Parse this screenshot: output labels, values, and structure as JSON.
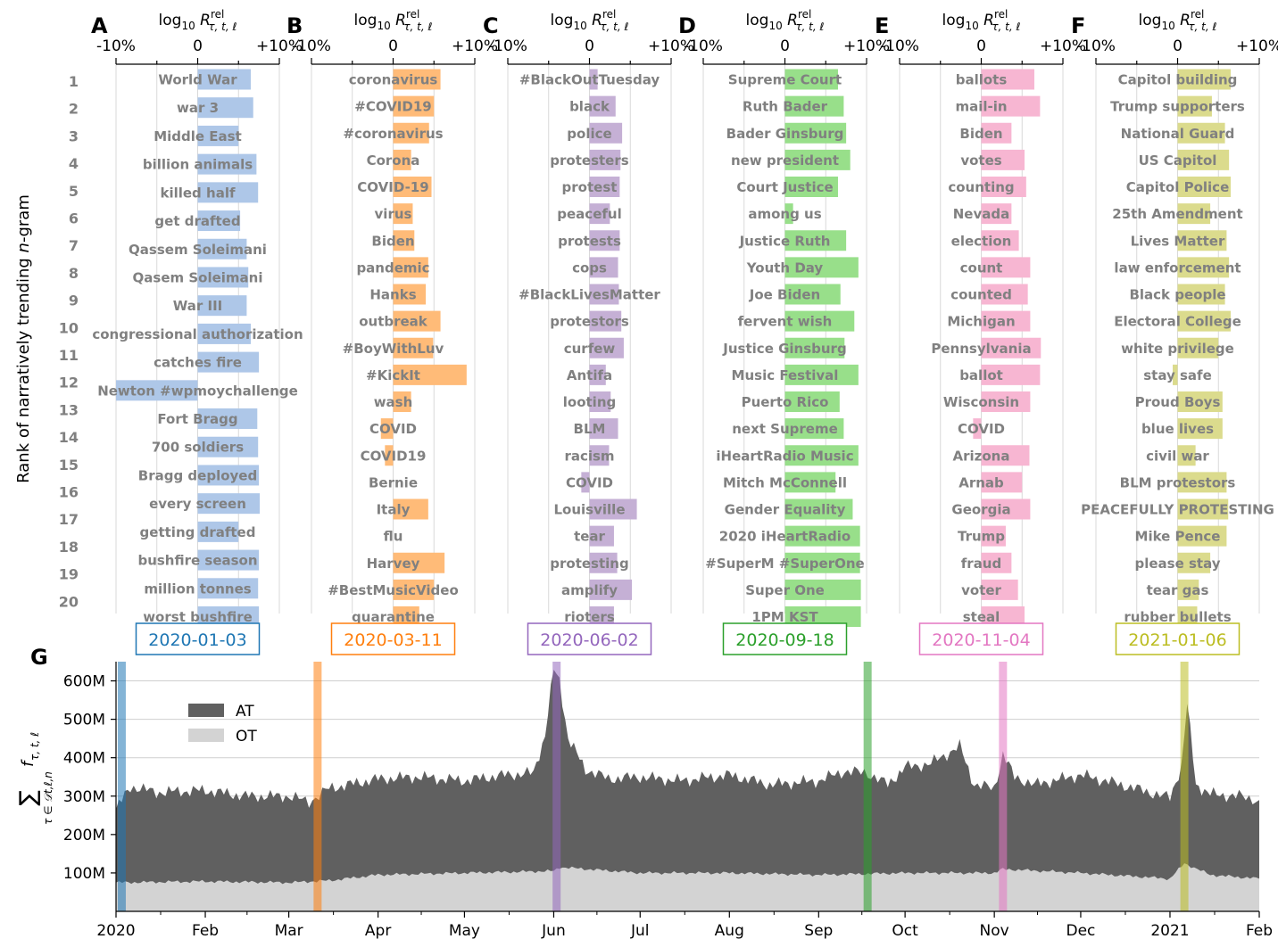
{
  "chart_data": [
    {
      "panel": "A",
      "type": "bar",
      "date": "2020-01-03",
      "color": "#aec7e8",
      "date_color": "#1f77b4",
      "xlabel": "log₁₀ R^rel_{τ,t,ℓ}",
      "xtick_labels": [
        "-10%",
        "0",
        "+10%"
      ],
      "xlim": [
        -10,
        10
      ],
      "rank_labels": [
        "1",
        "2",
        "3",
        "4",
        "5",
        "6",
        "7",
        "8",
        "9",
        "10",
        "11",
        "12",
        "13",
        "14",
        "15",
        "16",
        "17",
        "18",
        "19",
        "20"
      ],
      "ylabel": "Rank of narratively trending n-gram",
      "categories": [
        "World War",
        "war 3",
        "Middle East",
        "billion animals",
        "killed half",
        "get drafted",
        "Qassem Soleimani",
        "Qasem Soleimani",
        "War III",
        "congressional authorization",
        "catches fire",
        "Newton #wpmoychallenge",
        "Fort Bragg",
        "700 soldiers",
        "Bragg deployed",
        "every screen",
        "getting drafted",
        "bushfire season",
        "million tonnes",
        "worst bushfire"
      ],
      "values": [
        6.5,
        6.8,
        5.0,
        7.2,
        7.4,
        5.2,
        6.0,
        6.2,
        6.0,
        6.5,
        7.5,
        -10.0,
        7.3,
        7.4,
        7.5,
        7.6,
        5.0,
        7.5,
        7.4,
        7.5
      ]
    },
    {
      "panel": "B",
      "type": "bar",
      "date": "2020-03-11",
      "color": "#ffbb78",
      "date_color": "#ff7f0e",
      "xlabel": "log₁₀ R^rel_{τ,t,ℓ}",
      "xtick_labels": [
        "-10%",
        "0",
        "+10%"
      ],
      "xlim": [
        -10,
        10
      ],
      "categories": [
        "coronavirus",
        "#COVID19",
        "#coronavirus",
        "Corona",
        "COVID-19",
        "virus",
        "Biden",
        "pandemic",
        "Hanks",
        "outbreak",
        "#BoyWithLuv",
        "#KickIt",
        "wash",
        "COVID",
        "COVID19",
        "Bernie",
        "Italy",
        "flu",
        "Harvey",
        "#BestMusicVideo",
        "quarantine"
      ],
      "values": [
        5.8,
        5.0,
        4.4,
        2.2,
        4.7,
        2.4,
        2.6,
        4.3,
        4.0,
        5.8,
        4.9,
        9.0,
        2.2,
        -1.5,
        -1.0,
        0,
        4.3,
        0,
        6.3,
        5.0,
        3.2
      ]
    },
    {
      "panel": "C",
      "type": "bar",
      "date": "2020-06-02",
      "color": "#c5b0d5",
      "date_color": "#9467bd",
      "xlabel": "log₁₀ R^rel_{τ,t,ℓ}",
      "xtick_labels": [
        "-10%",
        "0",
        "+10%"
      ],
      "xlim": [
        -10,
        10
      ],
      "categories": [
        "#BlackOutTuesday",
        "black",
        "police",
        "protesters",
        "protest",
        "peaceful",
        "protests",
        "cops",
        "#BlackLivesMatter",
        "protestors",
        "curfew",
        "Antifa",
        "looting",
        "BLM",
        "racism",
        "COVID",
        "Louisville",
        "tear",
        "protesting",
        "amplify",
        "rioters"
      ],
      "values": [
        1.0,
        3.2,
        4.0,
        3.8,
        3.7,
        2.5,
        3.7,
        3.5,
        3.6,
        3.9,
        4.2,
        2.0,
        2.6,
        3.5,
        2.4,
        -1.0,
        5.8,
        3.0,
        3.4,
        5.2,
        3.0
      ]
    },
    {
      "panel": "D",
      "type": "bar",
      "date": "2020-09-18",
      "color": "#98df8a",
      "date_color": "#2ca02c",
      "xlabel": "log₁₀ R^rel_{τ,t,ℓ}",
      "xtick_labels": [
        "-10%",
        "0",
        "+10%"
      ],
      "xlim": [
        -10,
        10
      ],
      "categories": [
        "Supreme Court",
        "Ruth Bader",
        "Bader Ginsburg",
        "new president",
        "Court Justice",
        "among us",
        "Justice Ruth",
        "Youth Day",
        "Joe Biden",
        "fervent wish",
        "Justice Ginsburg",
        "Music Festival",
        "Puerto Rico",
        "next Supreme",
        "iHeartRadio Music",
        "Mitch McConnell",
        "Gender Equality",
        "2020 iHeartRadio",
        "#SuperM #SuperOne",
        "Super One",
        "1PM KST"
      ],
      "values": [
        6.5,
        7.2,
        7.5,
        8.0,
        6.5,
        1.0,
        7.5,
        9.0,
        6.8,
        8.5,
        7.3,
        9.0,
        6.7,
        7.2,
        9.0,
        6.2,
        8.3,
        9.2,
        9.2,
        9.3,
        9.3
      ]
    },
    {
      "panel": "E",
      "type": "bar",
      "date": "2020-11-04",
      "color": "#f7b6d2",
      "date_color": "#e377c2",
      "xlabel": "log₁₀ R^rel_{τ,t,ℓ}",
      "xtick_labels": [
        "-10%",
        "0",
        "+10%"
      ],
      "xlim": [
        -10,
        10
      ],
      "categories": [
        "ballots",
        "mail-in",
        "Biden",
        "votes",
        "counting",
        "Nevada",
        "election",
        "count",
        "counted",
        "Michigan",
        "Pennsylvania",
        "ballot",
        "Wisconsin",
        "COVID",
        "Arizona",
        "Arnab",
        "Georgia",
        "Trump",
        "fraud",
        "voter",
        "steal"
      ],
      "values": [
        6.5,
        7.2,
        3.7,
        5.3,
        5.5,
        3.7,
        4.6,
        6.0,
        5.7,
        6.0,
        7.3,
        7.2,
        6.0,
        -1.0,
        5.9,
        5.0,
        6.0,
        3.0,
        3.7,
        4.5,
        5.3
      ]
    },
    {
      "panel": "F",
      "type": "bar",
      "date": "2021-01-06",
      "color": "#dbdb8d",
      "date_color": "#bcbd22",
      "xlabel": "log₁₀ R^rel_{τ,t,ℓ}",
      "xtick_labels": [
        "-10%",
        "0",
        "+10%"
      ],
      "xlim": [
        -10,
        10
      ],
      "categories": [
        "Capitol building",
        "Trump supporters",
        "National Guard",
        "US Capitol",
        "Capitol Police",
        "25th Amendment",
        "Lives Matter",
        "law enforcement",
        "Black people",
        "Electoral College",
        "white privilege",
        "stay safe",
        "Proud Boys",
        "blue lives",
        "civil war",
        "BLM protestors",
        "PEACEFULLY PROTESTING",
        "Mike Pence",
        "please stay",
        "tear gas",
        "rubber bullets"
      ],
      "values": [
        6.5,
        4.2,
        5.8,
        6.3,
        6.5,
        4.0,
        6.0,
        6.3,
        5.8,
        6.5,
        5.0,
        -0.6,
        5.5,
        5.5,
        2.2,
        6.0,
        6.2,
        6.0,
        4.0,
        2.6,
        2.4
      ]
    },
    {
      "panel": "G",
      "type": "area",
      "ylabel": "∑ f_{τ,t,ℓ}  (τ ∈ D_{t,ℓ,n})",
      "ylim": [
        0,
        650
      ],
      "y_unit": "M",
      "ytick_labels": [
        "100M",
        "200M",
        "300M",
        "400M",
        "500M",
        "600M"
      ],
      "xtick_labels": [
        "2020",
        "Feb",
        "Mar",
        "Apr",
        "May",
        "Jun",
        "Jul",
        "Aug",
        "Sep",
        "Oct",
        "Nov",
        "Dec",
        "2021",
        "Feb"
      ],
      "xlim": [
        "2020-01-01",
        "2021-02-01"
      ],
      "grid": "horizontal",
      "legend_position": "upper left",
      "highlight_dates": [
        "2020-01-03",
        "2020-03-11",
        "2020-06-02",
        "2020-09-18",
        "2020-11-04",
        "2021-01-06"
      ],
      "highlight_colors": [
        "#1f77b4",
        "#ff7f0e",
        "#9467bd",
        "#2ca02c",
        "#e377c2",
        "#bcbd22"
      ],
      "series": [
        {
          "name": "AT",
          "color": "#606060",
          "x": [
            "2020-01-01",
            "2020-01-06",
            "2020-01-15",
            "2020-02-01",
            "2020-02-15",
            "2020-03-01",
            "2020-03-08",
            "2020-03-15",
            "2020-04-01",
            "2020-04-15",
            "2020-05-01",
            "2020-05-15",
            "2020-05-25",
            "2020-05-29",
            "2020-06-01",
            "2020-06-03",
            "2020-06-06",
            "2020-06-12",
            "2020-06-20",
            "2020-07-01",
            "2020-07-15",
            "2020-08-01",
            "2020-08-15",
            "2020-09-01",
            "2020-09-10",
            "2020-09-18",
            "2020-09-25",
            "2020-10-01",
            "2020-10-10",
            "2020-10-20",
            "2020-10-25",
            "2020-11-01",
            "2020-11-04",
            "2020-11-08",
            "2020-11-15",
            "2020-12-01",
            "2020-12-15",
            "2020-12-25",
            "2021-01-01",
            "2021-01-05",
            "2021-01-07",
            "2021-01-10",
            "2021-01-15",
            "2021-01-25",
            "2021-02-01"
          ],
          "values": [
            265,
            325,
            310,
            315,
            300,
            300,
            285,
            320,
            345,
            350,
            340,
            355,
            360,
            460,
            630,
            600,
            450,
            370,
            345,
            350,
            340,
            355,
            330,
            340,
            365,
            360,
            330,
            375,
            385,
            430,
            330,
            320,
            410,
            350,
            330,
            355,
            330,
            310,
            295,
            380,
            540,
            330,
            305,
            300,
            290
          ]
        },
        {
          "name": "OT",
          "color": "#d3d3d3",
          "x": [
            "2020-01-01",
            "2020-02-01",
            "2020-03-01",
            "2020-03-15",
            "2020-04-01",
            "2020-05-01",
            "2020-06-01",
            "2020-06-03",
            "2020-07-01",
            "2020-08-01",
            "2020-09-01",
            "2020-10-01",
            "2020-11-01",
            "2020-11-04",
            "2020-12-01",
            "2021-01-01",
            "2021-01-06",
            "2021-01-15",
            "2021-02-01"
          ],
          "values": [
            75,
            78,
            75,
            80,
            95,
            100,
            105,
            115,
            100,
            100,
            95,
            100,
            100,
            110,
            100,
            85,
            125,
            95,
            85
          ]
        }
      ]
    }
  ]
}
